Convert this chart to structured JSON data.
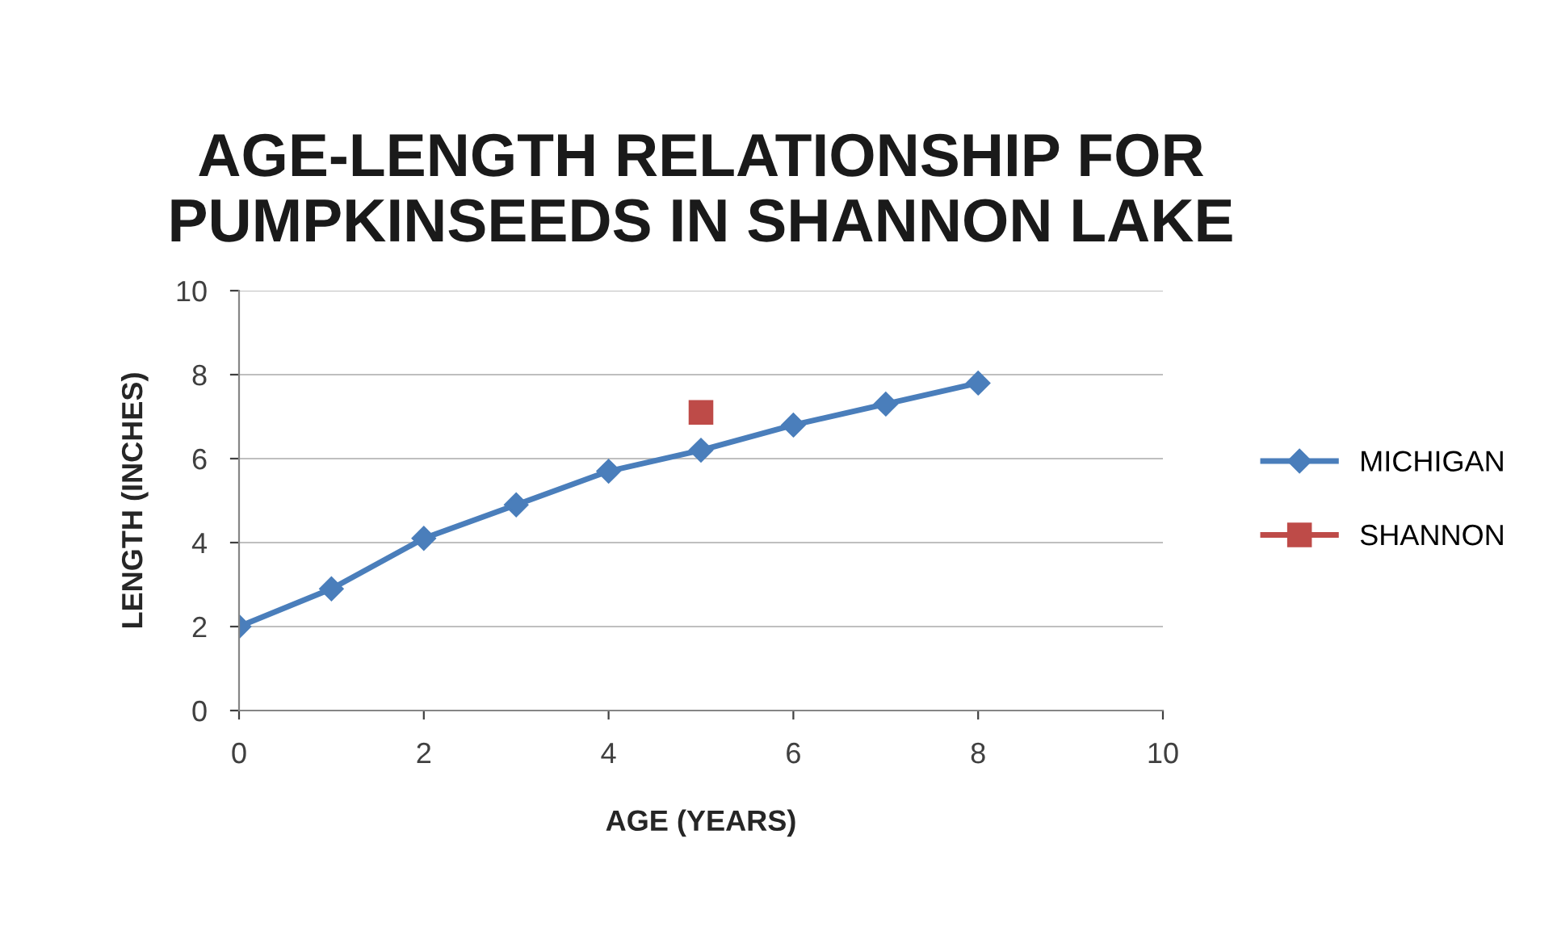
{
  "chart_data": {
    "type": "line",
    "title": "AGE-LENGTH RELATIONSHIP FOR\nPUMPKINSEEDS IN SHANNON LAKE",
    "xlabel": "AGE (YEARS)",
    "ylabel": "LENGTH (INCHES)",
    "series": [
      {
        "name": "MICHIGAN",
        "color": "#4a7ebb",
        "marker": "diamond",
        "x": [
          0,
          1,
          2,
          3,
          4,
          5,
          6,
          7,
          8
        ],
        "values": [
          2.0,
          2.9,
          4.1,
          4.9,
          5.7,
          6.2,
          6.8,
          7.3,
          7.8
        ]
      },
      {
        "name": "SHANNON",
        "color": "#be4b48",
        "marker": "square",
        "x": [
          5
        ],
        "values": [
          7.1
        ]
      }
    ],
    "xlim": [
      0,
      10
    ],
    "xticks": [
      0,
      2,
      4,
      6,
      8,
      10
    ],
    "ylim": [
      0,
      10
    ],
    "yticks": [
      0,
      2,
      4,
      6,
      8,
      10
    ],
    "grid": "y",
    "legend": "right"
  }
}
